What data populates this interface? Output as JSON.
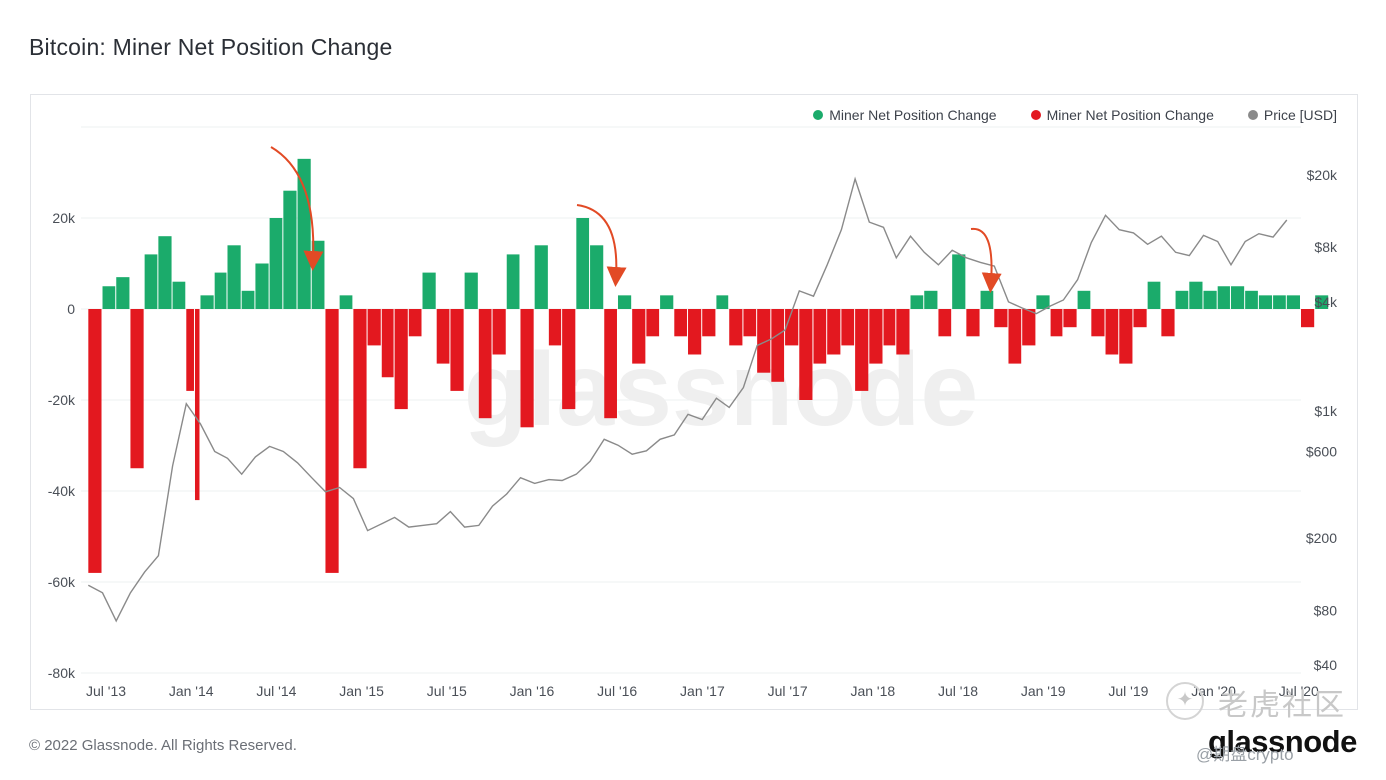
{
  "page": {
    "title": "Bitcoin: Miner Net Position Change"
  },
  "footer": {
    "copyright": "© 2022 Glassnode. All Rights Reserved.",
    "brand": "glassnode",
    "watermark": "glassnode"
  },
  "overlay": {
    "tiger_watermark": "老虎社区",
    "handle": "@期盘crypto"
  },
  "legend": [
    {
      "label": "Miner Net Position Change",
      "color": "#1bab6b"
    },
    {
      "label": "Miner Net Position Change",
      "color": "#e3181f"
    },
    {
      "label": "Price [USD]",
      "color": "#8a8a8a"
    }
  ],
  "colors": {
    "positive": "#1bab6b",
    "negative": "#e3181f",
    "price": "#8a8a8a",
    "arrow": "#e24a25"
  },
  "chart_data": {
    "type": "bar",
    "title": "Bitcoin: Miner Net Position Change",
    "x_ticks": [
      "Jul '13",
      "Jan '14",
      "Jul '14",
      "Jan '15",
      "Jul '15",
      "Jan '16",
      "Jul '16",
      "Jan '17",
      "Jul '17",
      "Jan '18",
      "Jul '18",
      "Jan '19",
      "Jul '19",
      "Jan '20",
      "Jul '20"
    ],
    "y_left": {
      "ticks": [
        "20k",
        "0",
        "-20k",
        "-40k",
        "-60k",
        "-80k"
      ],
      "tick_values": [
        20000,
        0,
        -20000,
        -40000,
        -60000,
        -80000
      ],
      "range": [
        -80000,
        40000
      ]
    },
    "y_right": {
      "scale": "log",
      "ticks": [
        "$20k",
        "$8k",
        "$4k",
        "$1k",
        "$600",
        "$200",
        "$80",
        "$40"
      ],
      "tick_values": [
        20000,
        8000,
        4000,
        1000,
        600,
        200,
        80,
        40
      ]
    },
    "grid": "horizontal",
    "legend_position": "top-right",
    "net_position_change": [
      {
        "date": "2013-05",
        "value": -58000
      },
      {
        "date": "2013-06",
        "value": 5000
      },
      {
        "date": "2013-07",
        "value": 7000
      },
      {
        "date": "2013-08",
        "value": -35000
      },
      {
        "date": "2013-09",
        "value": 12000
      },
      {
        "date": "2013-10",
        "value": 16000
      },
      {
        "date": "2013-11",
        "value": 6000
      },
      {
        "date": "2013-12",
        "value": -18000
      },
      {
        "date": "2013-12-20",
        "value": -42000
      },
      {
        "date": "2014-01",
        "value": 3000
      },
      {
        "date": "2014-02",
        "value": 8000
      },
      {
        "date": "2014-03",
        "value": 14000
      },
      {
        "date": "2014-04",
        "value": 4000
      },
      {
        "date": "2014-05",
        "value": 10000
      },
      {
        "date": "2014-06",
        "value": 20000
      },
      {
        "date": "2014-07",
        "value": 26000
      },
      {
        "date": "2014-08",
        "value": 33000
      },
      {
        "date": "2014-09",
        "value": 15000
      },
      {
        "date": "2014-10",
        "value": -58000
      },
      {
        "date": "2014-11",
        "value": 3000
      },
      {
        "date": "2014-12",
        "value": -35000
      },
      {
        "date": "2015-01",
        "value": -8000
      },
      {
        "date": "2015-02",
        "value": -15000
      },
      {
        "date": "2015-03",
        "value": -22000
      },
      {
        "date": "2015-04",
        "value": -6000
      },
      {
        "date": "2015-05",
        "value": 8000
      },
      {
        "date": "2015-06",
        "value": -12000
      },
      {
        "date": "2015-07",
        "value": -18000
      },
      {
        "date": "2015-08",
        "value": 8000
      },
      {
        "date": "2015-09",
        "value": -24000
      },
      {
        "date": "2015-10",
        "value": -10000
      },
      {
        "date": "2015-11",
        "value": 12000
      },
      {
        "date": "2015-12",
        "value": -26000
      },
      {
        "date": "2016-01",
        "value": 14000
      },
      {
        "date": "2016-02",
        "value": -8000
      },
      {
        "date": "2016-03",
        "value": -22000
      },
      {
        "date": "2016-04",
        "value": 20000
      },
      {
        "date": "2016-05",
        "value": 14000
      },
      {
        "date": "2016-06",
        "value": -24000
      },
      {
        "date": "2016-07",
        "value": 3000
      },
      {
        "date": "2016-08",
        "value": -12000
      },
      {
        "date": "2016-09",
        "value": -6000
      },
      {
        "date": "2016-10",
        "value": 3000
      },
      {
        "date": "2016-11",
        "value": -6000
      },
      {
        "date": "2016-12",
        "value": -10000
      },
      {
        "date": "2017-01",
        "value": -6000
      },
      {
        "date": "2017-02",
        "value": 3000
      },
      {
        "date": "2017-03",
        "value": -8000
      },
      {
        "date": "2017-04",
        "value": -6000
      },
      {
        "date": "2017-05",
        "value": -14000
      },
      {
        "date": "2017-06",
        "value": -16000
      },
      {
        "date": "2017-07",
        "value": -8000
      },
      {
        "date": "2017-08",
        "value": -20000
      },
      {
        "date": "2017-09",
        "value": -12000
      },
      {
        "date": "2017-10",
        "value": -10000
      },
      {
        "date": "2017-11",
        "value": -8000
      },
      {
        "date": "2017-12",
        "value": -18000
      },
      {
        "date": "2018-01",
        "value": -12000
      },
      {
        "date": "2018-02",
        "value": -8000
      },
      {
        "date": "2018-03",
        "value": -10000
      },
      {
        "date": "2018-04",
        "value": 3000
      },
      {
        "date": "2018-05",
        "value": 4000
      },
      {
        "date": "2018-06",
        "value": -6000
      },
      {
        "date": "2018-07",
        "value": 12000
      },
      {
        "date": "2018-08",
        "value": -6000
      },
      {
        "date": "2018-09",
        "value": 4000
      },
      {
        "date": "2018-10",
        "value": -4000
      },
      {
        "date": "2018-11",
        "value": -12000
      },
      {
        "date": "2018-12",
        "value": -8000
      },
      {
        "date": "2019-01",
        "value": 3000
      },
      {
        "date": "2019-02",
        "value": -6000
      },
      {
        "date": "2019-03",
        "value": -4000
      },
      {
        "date": "2019-04",
        "value": 4000
      },
      {
        "date": "2019-05",
        "value": -6000
      },
      {
        "date": "2019-06",
        "value": -10000
      },
      {
        "date": "2019-07",
        "value": -12000
      },
      {
        "date": "2019-08",
        "value": -4000
      },
      {
        "date": "2019-09",
        "value": 6000
      },
      {
        "date": "2019-10",
        "value": -6000
      },
      {
        "date": "2019-11",
        "value": 4000
      },
      {
        "date": "2019-12",
        "value": 6000
      },
      {
        "date": "2020-01",
        "value": 4000
      },
      {
        "date": "2020-02",
        "value": 5000
      },
      {
        "date": "2020-03",
        "value": 5000
      },
      {
        "date": "2020-04",
        "value": 4000
      },
      {
        "date": "2020-05",
        "value": 3000
      },
      {
        "date": "2020-06",
        "value": 3000
      },
      {
        "date": "2020-07",
        "value": 3000
      },
      {
        "date": "2020-08",
        "value": -4000
      },
      {
        "date": "2020-09",
        "value": 3000
      }
    ],
    "price_usd": [
      {
        "date": "2013-05",
        "value": 110
      },
      {
        "date": "2013-06",
        "value": 100
      },
      {
        "date": "2013-07",
        "value": 70
      },
      {
        "date": "2013-08",
        "value": 100
      },
      {
        "date": "2013-09",
        "value": 130
      },
      {
        "date": "2013-10",
        "value": 160
      },
      {
        "date": "2013-11",
        "value": 500
      },
      {
        "date": "2013-12",
        "value": 1100
      },
      {
        "date": "2014-01",
        "value": 850
      },
      {
        "date": "2014-02",
        "value": 600
      },
      {
        "date": "2014-03",
        "value": 550
      },
      {
        "date": "2014-04",
        "value": 450
      },
      {
        "date": "2014-05",
        "value": 560
      },
      {
        "date": "2014-06",
        "value": 640
      },
      {
        "date": "2014-07",
        "value": 600
      },
      {
        "date": "2014-08",
        "value": 520
      },
      {
        "date": "2014-09",
        "value": 430
      },
      {
        "date": "2014-10",
        "value": 360
      },
      {
        "date": "2014-11",
        "value": 380
      },
      {
        "date": "2014-12",
        "value": 330
      },
      {
        "date": "2015-01",
        "value": 220
      },
      {
        "date": "2015-02",
        "value": 240
      },
      {
        "date": "2015-03",
        "value": 260
      },
      {
        "date": "2015-04",
        "value": 230
      },
      {
        "date": "2015-05",
        "value": 235
      },
      {
        "date": "2015-06",
        "value": 240
      },
      {
        "date": "2015-07",
        "value": 280
      },
      {
        "date": "2015-08",
        "value": 230
      },
      {
        "date": "2015-09",
        "value": 235
      },
      {
        "date": "2015-10",
        "value": 300
      },
      {
        "date": "2015-11",
        "value": 350
      },
      {
        "date": "2015-12",
        "value": 430
      },
      {
        "date": "2016-01",
        "value": 400
      },
      {
        "date": "2016-02",
        "value": 420
      },
      {
        "date": "2016-03",
        "value": 415
      },
      {
        "date": "2016-04",
        "value": 450
      },
      {
        "date": "2016-05",
        "value": 530
      },
      {
        "date": "2016-06",
        "value": 700
      },
      {
        "date": "2016-07",
        "value": 650
      },
      {
        "date": "2016-08",
        "value": 580
      },
      {
        "date": "2016-09",
        "value": 605
      },
      {
        "date": "2016-10",
        "value": 700
      },
      {
        "date": "2016-11",
        "value": 740
      },
      {
        "date": "2016-12",
        "value": 960
      },
      {
        "date": "2017-01",
        "value": 900
      },
      {
        "date": "2017-02",
        "value": 1180
      },
      {
        "date": "2017-03",
        "value": 1050
      },
      {
        "date": "2017-04",
        "value": 1350
      },
      {
        "date": "2017-05",
        "value": 2300
      },
      {
        "date": "2017-06",
        "value": 2500
      },
      {
        "date": "2017-07",
        "value": 2800
      },
      {
        "date": "2017-08",
        "value": 4600
      },
      {
        "date": "2017-09",
        "value": 4300
      },
      {
        "date": "2017-10",
        "value": 6400
      },
      {
        "date": "2017-11",
        "value": 10000
      },
      {
        "date": "2017-12",
        "value": 19000
      },
      {
        "date": "2018-01",
        "value": 11000
      },
      {
        "date": "2018-02",
        "value": 10300
      },
      {
        "date": "2018-03",
        "value": 7000
      },
      {
        "date": "2018-04",
        "value": 9200
      },
      {
        "date": "2018-05",
        "value": 7500
      },
      {
        "date": "2018-06",
        "value": 6400
      },
      {
        "date": "2018-07",
        "value": 7700
      },
      {
        "date": "2018-08",
        "value": 7000
      },
      {
        "date": "2018-09",
        "value": 6600
      },
      {
        "date": "2018-10",
        "value": 6300
      },
      {
        "date": "2018-11",
        "value": 4000
      },
      {
        "date": "2018-12",
        "value": 3700
      },
      {
        "date": "2019-01",
        "value": 3450
      },
      {
        "date": "2019-02",
        "value": 3800
      },
      {
        "date": "2019-03",
        "value": 4100
      },
      {
        "date": "2019-04",
        "value": 5300
      },
      {
        "date": "2019-05",
        "value": 8500
      },
      {
        "date": "2019-06",
        "value": 12000
      },
      {
        "date": "2019-07",
        "value": 10000
      },
      {
        "date": "2019-08",
        "value": 9600
      },
      {
        "date": "2019-09",
        "value": 8300
      },
      {
        "date": "2019-10",
        "value": 9200
      },
      {
        "date": "2019-11",
        "value": 7500
      },
      {
        "date": "2019-12",
        "value": 7200
      },
      {
        "date": "2020-01",
        "value": 9300
      },
      {
        "date": "2020-02",
        "value": 8600
      },
      {
        "date": "2020-03",
        "value": 6400
      },
      {
        "date": "2020-04",
        "value": 8600
      },
      {
        "date": "2020-05",
        "value": 9500
      },
      {
        "date": "2020-06",
        "value": 9100
      },
      {
        "date": "2020-07",
        "value": 11300
      }
    ]
  }
}
